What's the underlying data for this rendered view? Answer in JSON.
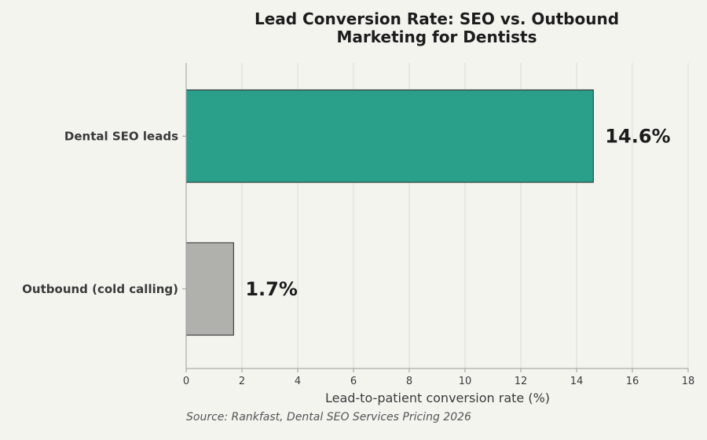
{
  "chart_data": {
    "type": "bar",
    "orientation": "horizontal",
    "title_lines": [
      "Lead Conversion Rate: SEO vs. Outbound",
      "Marketing for Dentists"
    ],
    "categories": [
      "Dental SEO leads",
      "Outbound (cold calling)"
    ],
    "values": [
      14.6,
      1.7
    ],
    "value_labels": [
      "14.6%",
      "1.7%"
    ],
    "bar_colors": [
      "#2aa08b",
      "#b0b0ad"
    ],
    "xlabel": "Lead-to-patient conversion rate (%)",
    "ylabel": "",
    "xlim": [
      0,
      18
    ],
    "x_ticks": [
      "0",
      "2",
      "4",
      "6",
      "8",
      "10",
      "12",
      "14",
      "16",
      "18"
    ],
    "grid": true,
    "source": "Source: Rankfast, Dental SEO Services Pricing 2026"
  }
}
